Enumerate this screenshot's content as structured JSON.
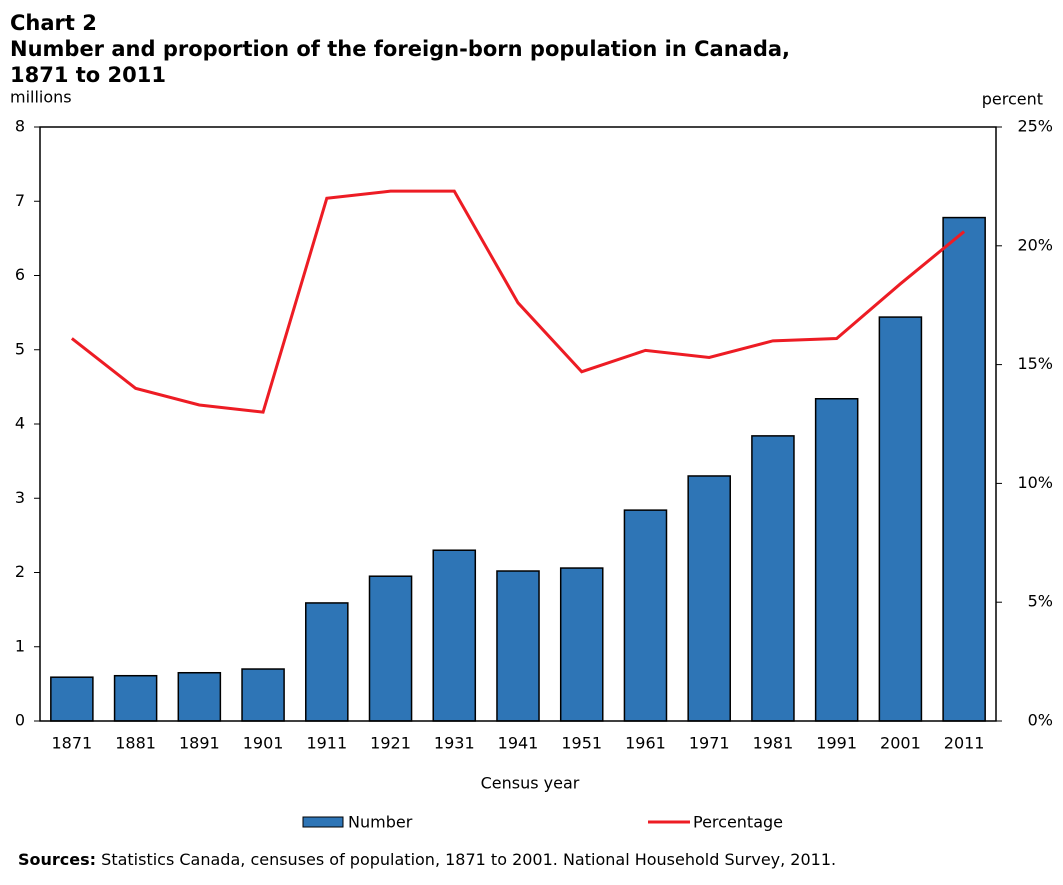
{
  "chart_data": {
    "type": "bar_line",
    "label": "Chart 2",
    "title": "Number and proportion of the foreign-born population in Canada, 1871 to 2011",
    "y_label": "millions",
    "y2_label": "percent",
    "x_label": "Census year",
    "categories": [
      "1871",
      "1881",
      "1891",
      "1901",
      "1911",
      "1921",
      "1931",
      "1941",
      "1951",
      "1961",
      "1971",
      "1981",
      "1991",
      "2001",
      "2011"
    ],
    "series": [
      {
        "name": "Number",
        "type": "bar",
        "color": "#2e75b6",
        "values": [
          0.59,
          0.61,
          0.65,
          0.7,
          1.59,
          1.95,
          2.3,
          2.02,
          2.06,
          2.84,
          3.3,
          3.84,
          4.34,
          5.44,
          6.78
        ]
      },
      {
        "name": "Percentage",
        "type": "line",
        "axis": "y2",
        "color": "#ed1c24",
        "values": [
          16.1,
          14.0,
          13.3,
          13.0,
          22.0,
          22.3,
          22.3,
          17.6,
          14.7,
          15.6,
          15.3,
          16.0,
          16.1,
          18.4,
          20.6
        ]
      }
    ],
    "ylim": [
      0,
      8
    ],
    "yticks": [
      0,
      1,
      2,
      3,
      4,
      5,
      6,
      7,
      8
    ],
    "y2lim": [
      0,
      25
    ],
    "y2ticks": [
      {
        "value": 0,
        "label": "0%"
      },
      {
        "value": 5,
        "label": "5%"
      },
      {
        "value": 10,
        "label": "10%"
      },
      {
        "value": 15,
        "label": "15%"
      },
      {
        "value": 20,
        "label": "20%"
      },
      {
        "value": 25,
        "label": "25%"
      }
    ],
    "source_label": "Sources:",
    "source": "Statistics Canada, censuses of population, 1871 to 2001. National Household Survey, 2011."
  }
}
